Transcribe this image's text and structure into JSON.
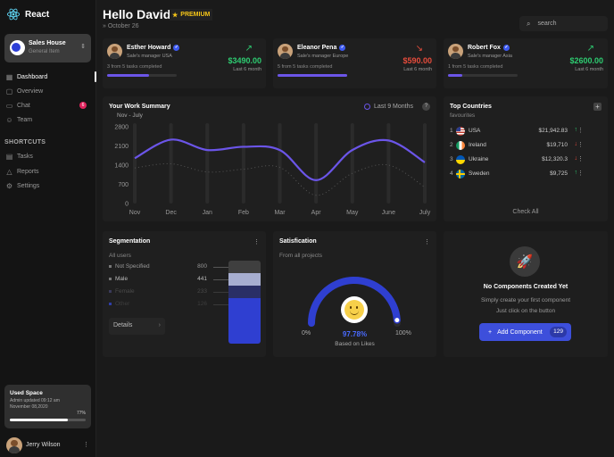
{
  "app": {
    "name": "React"
  },
  "team": {
    "name": "Sales House",
    "type": "General Item"
  },
  "nav": [
    {
      "label": "Dashboard",
      "icon": "grid-icon"
    },
    {
      "label": "Overview",
      "icon": "document-icon"
    },
    {
      "label": "Chat",
      "icon": "chat-icon",
      "badge": "6"
    },
    {
      "label": "Team",
      "icon": "users-icon"
    }
  ],
  "shortcuts": {
    "title": "SHORTCUTS",
    "items": [
      {
        "label": "Tasks",
        "icon": "calendar-icon"
      },
      {
        "label": "Reports",
        "icon": "warning-icon"
      },
      {
        "label": "Settings",
        "icon": "gear-icon"
      }
    ]
  },
  "used_space": {
    "title": "Used Space",
    "text": "Admin updated 09:12 am November 08,2020",
    "percent_label": "77%",
    "percent": 77
  },
  "user": {
    "name": "Jerry Wilson"
  },
  "header": {
    "greeting": "Hello David",
    "badge": "PREMIUM",
    "date": "October 26"
  },
  "search": {
    "placeholder": "search"
  },
  "managers": [
    {
      "name": "Esther Howard",
      "role": "Sale's manager USA",
      "tasks": "3 from 5 tasks completed",
      "progress": 0.6,
      "amount": "$3490.00",
      "period": "Last 6 month",
      "trend": "up"
    },
    {
      "name": "Eleanor Pena",
      "role": "Sale's manager Europe",
      "tasks": "5 from 5 tasks completed",
      "progress": 1.0,
      "amount": "$590.00",
      "period": "Last 6 month",
      "trend": "down"
    },
    {
      "name": "Robert Fox",
      "role": "Sale's manager Asia",
      "tasks": "1 from 5 tasks completed",
      "progress": 0.2,
      "amount": "$2600.00",
      "period": "Last 6 month",
      "trend": "up"
    }
  ],
  "summary": {
    "title": "Your Work Summary",
    "filter": "Last 9 Months",
    "help": "?",
    "range_label": "Nov - July"
  },
  "chart_data": {
    "type": "line",
    "title": "Your Work Summary",
    "categories": [
      "Nov",
      "Dec",
      "Jan",
      "Feb",
      "Mar",
      "Apr",
      "May",
      "June",
      "July"
    ],
    "yticks": [
      0,
      700,
      1400,
      2100,
      2800
    ],
    "ylim": [
      0,
      2800
    ],
    "series": [
      {
        "values": [
          1650,
          2330,
          1950,
          2070,
          1950,
          850,
          1950,
          2300,
          1500
        ]
      },
      {
        "values": [
          1300,
          1450,
          1150,
          1250,
          1320,
          300,
          1100,
          1400,
          600
        ]
      }
    ],
    "grid": true
  },
  "countries": {
    "title": "Top Countries",
    "subtitle": "favourites",
    "action": "Check All",
    "rows": [
      {
        "n": "1",
        "name": "USA",
        "value": "$21,942.83",
        "trend": "up"
      },
      {
        "n": "2",
        "name": "Ireland",
        "value": "$19,710",
        "trend": "down"
      },
      {
        "n": "3",
        "name": "Ukraine",
        "value": "$12,320.3",
        "trend": "down"
      },
      {
        "n": "4",
        "name": "Sweden",
        "value": "$9,725",
        "trend": "up"
      }
    ]
  },
  "segmentation": {
    "title": "Segmentation",
    "subtitle": "All users",
    "rows": [
      {
        "label": "Not Specified",
        "value": "800"
      },
      {
        "label": "Male",
        "value": "441"
      },
      {
        "label": "Female",
        "value": "233"
      },
      {
        "label": "Other",
        "value": "126"
      }
    ],
    "details": "Details"
  },
  "satisfaction": {
    "title": "Satisfication",
    "subtitle": "From all projects",
    "percent": "97.78%",
    "caption": "Based on Likes",
    "min": "0%",
    "max": "100%",
    "value": 0.9778
  },
  "empty": {
    "title": "No Components Created Yet",
    "line1": "Simply create your first component",
    "line2": "Just click on the button",
    "button": "Add Component",
    "count": "129"
  },
  "colors": {
    "accent": "#3d4fdb",
    "line": "#6b55e8",
    "up": "#2ecc71",
    "down": "#e74c3c"
  }
}
